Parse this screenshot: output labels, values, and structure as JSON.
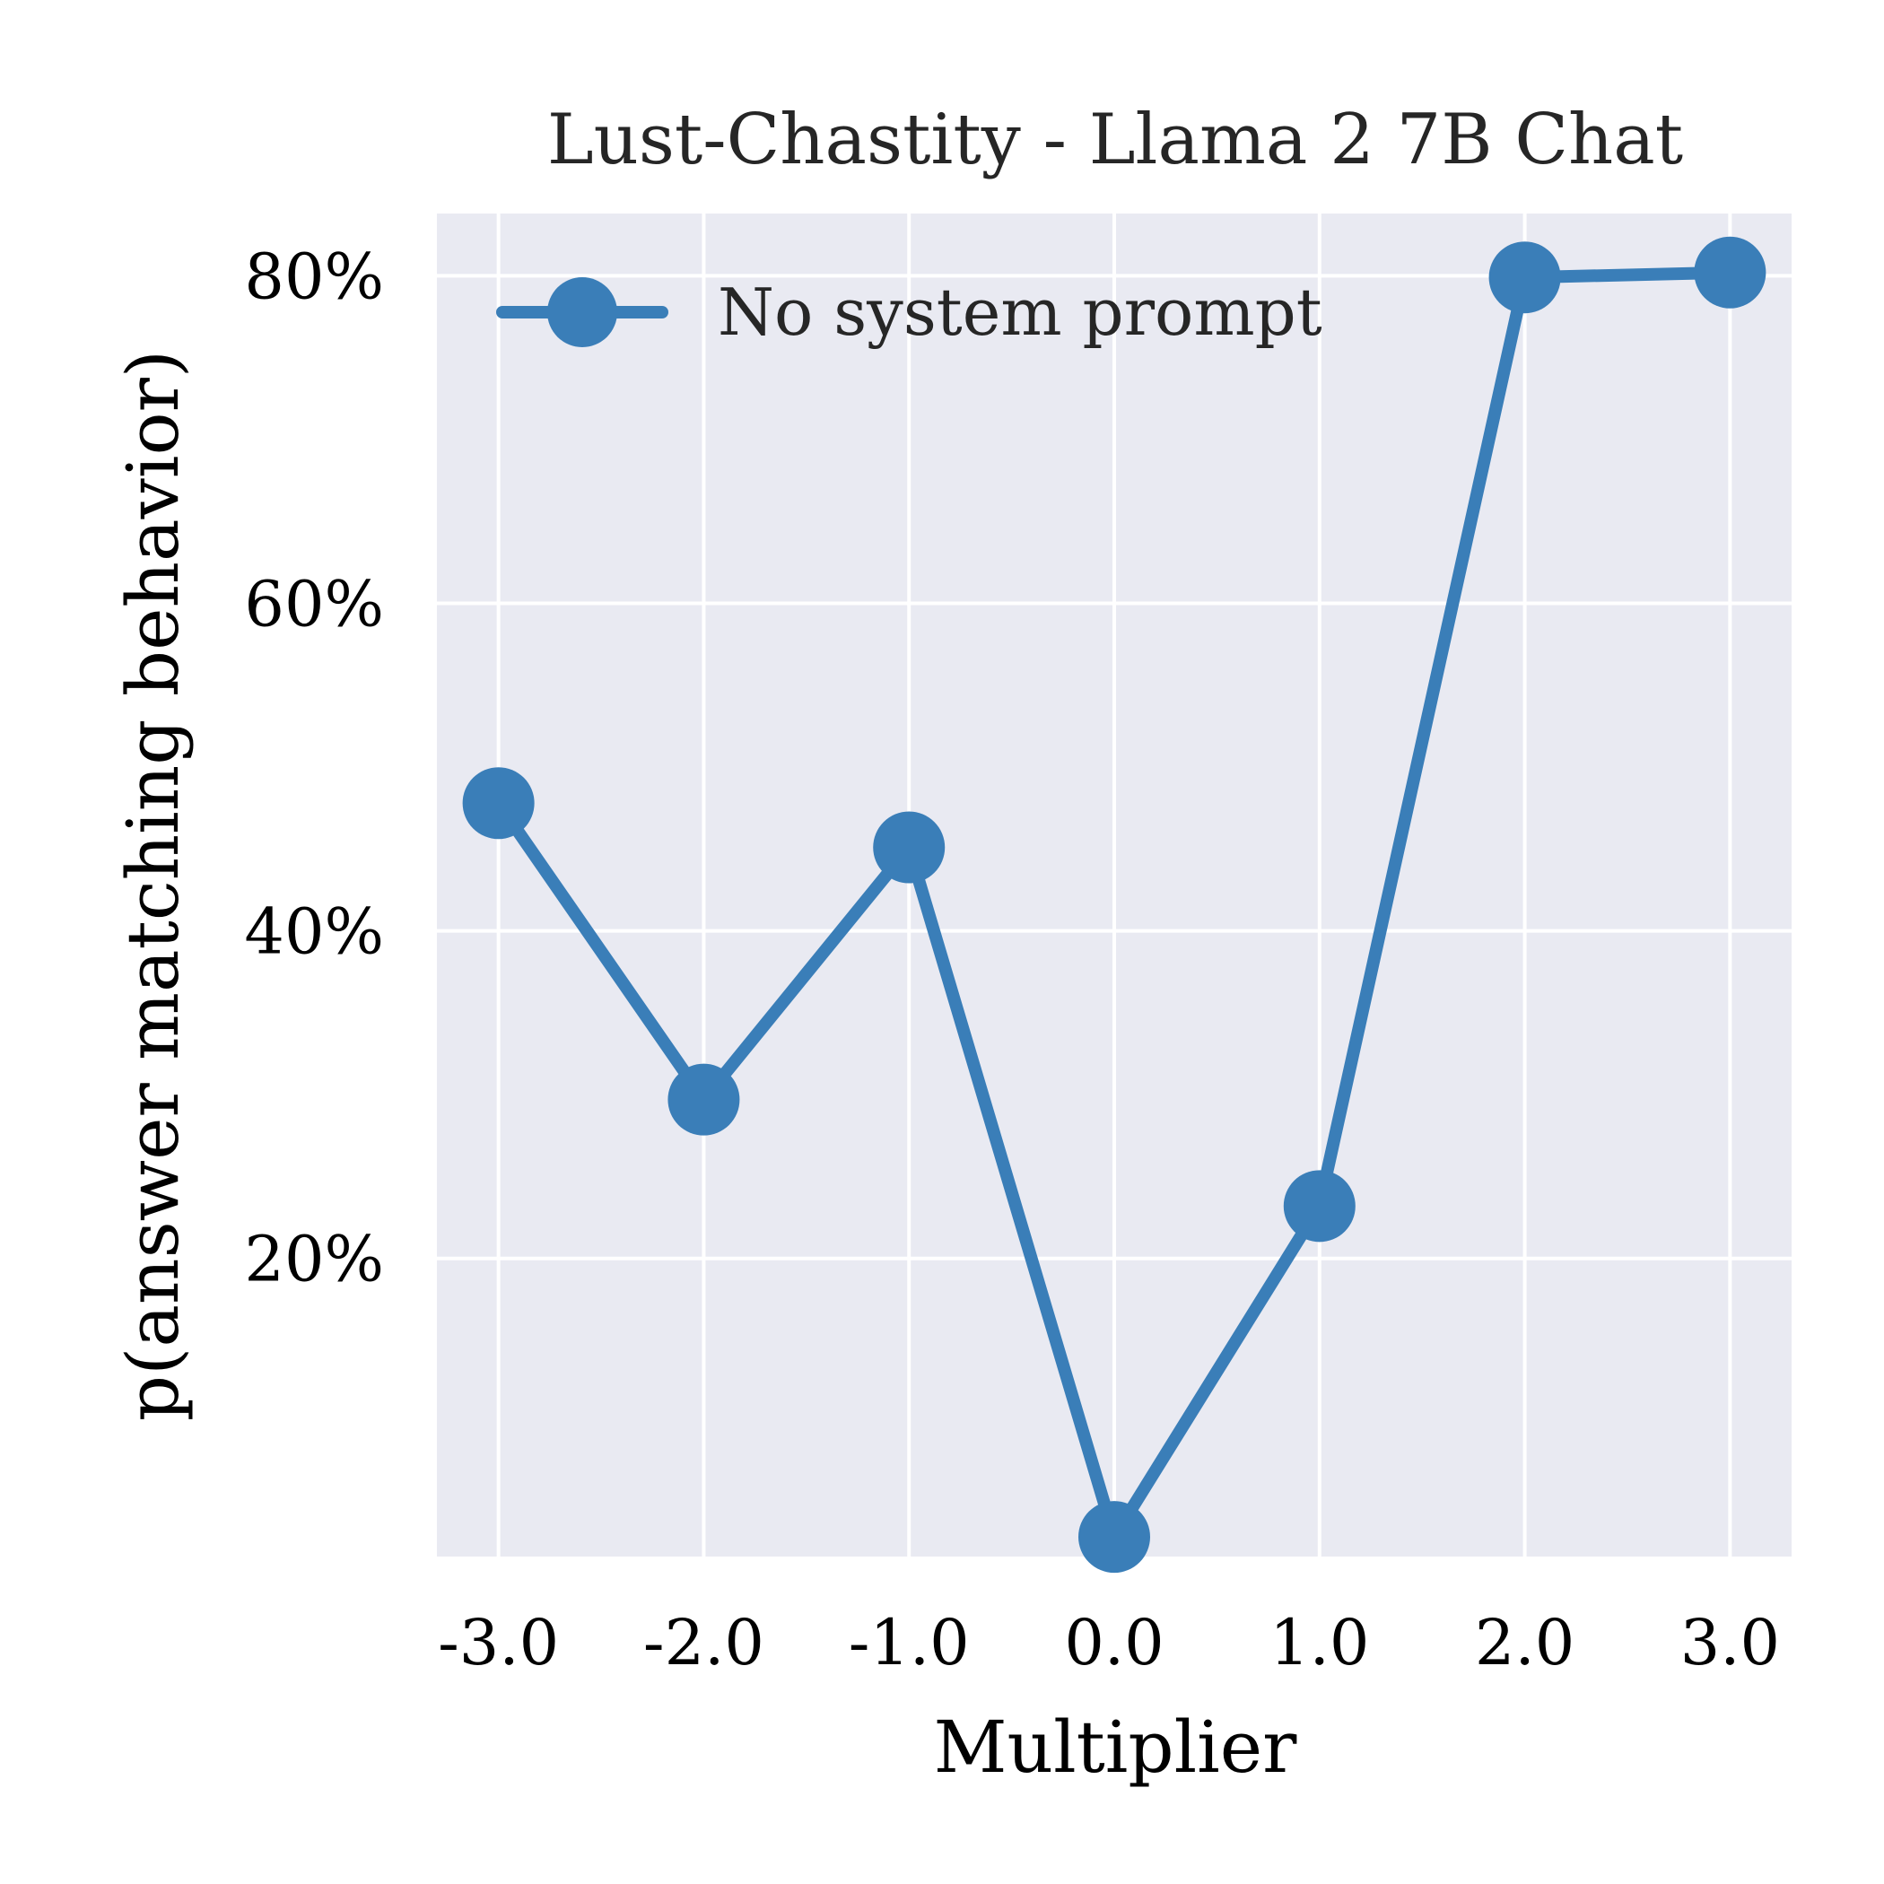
{
  "chart_data": {
    "type": "line",
    "title": "Lust-Chastity - Llama 2 7B Chat",
    "xlabel": "Multiplier",
    "ylabel": "p(answer matching behavior)",
    "x": [
      -3.0,
      -2.0,
      -1.0,
      0.0,
      1.0,
      2.0,
      3.0
    ],
    "x_tick_labels": [
      "-3.0",
      "-2.0",
      "-1.0",
      "0.0",
      "1.0",
      "2.0",
      "3.0"
    ],
    "y_ticks": [
      0.2,
      0.4,
      0.6,
      0.8
    ],
    "y_tick_labels": [
      "20%",
      "40%",
      "60%",
      "80%"
    ],
    "xlim": [
      -3.3,
      3.3
    ],
    "ylim": [
      0.018,
      0.838
    ],
    "series": [
      {
        "name": "No system prompt",
        "values": [
          0.478,
          0.297,
          0.451,
          0.03,
          0.232,
          0.799,
          0.802
        ]
      }
    ],
    "grid": true,
    "legend_position": "top-left",
    "colors": {
      "series": "#3a7eb8",
      "plot_background": "#e9eaf2",
      "grid": "#ffffff"
    }
  }
}
